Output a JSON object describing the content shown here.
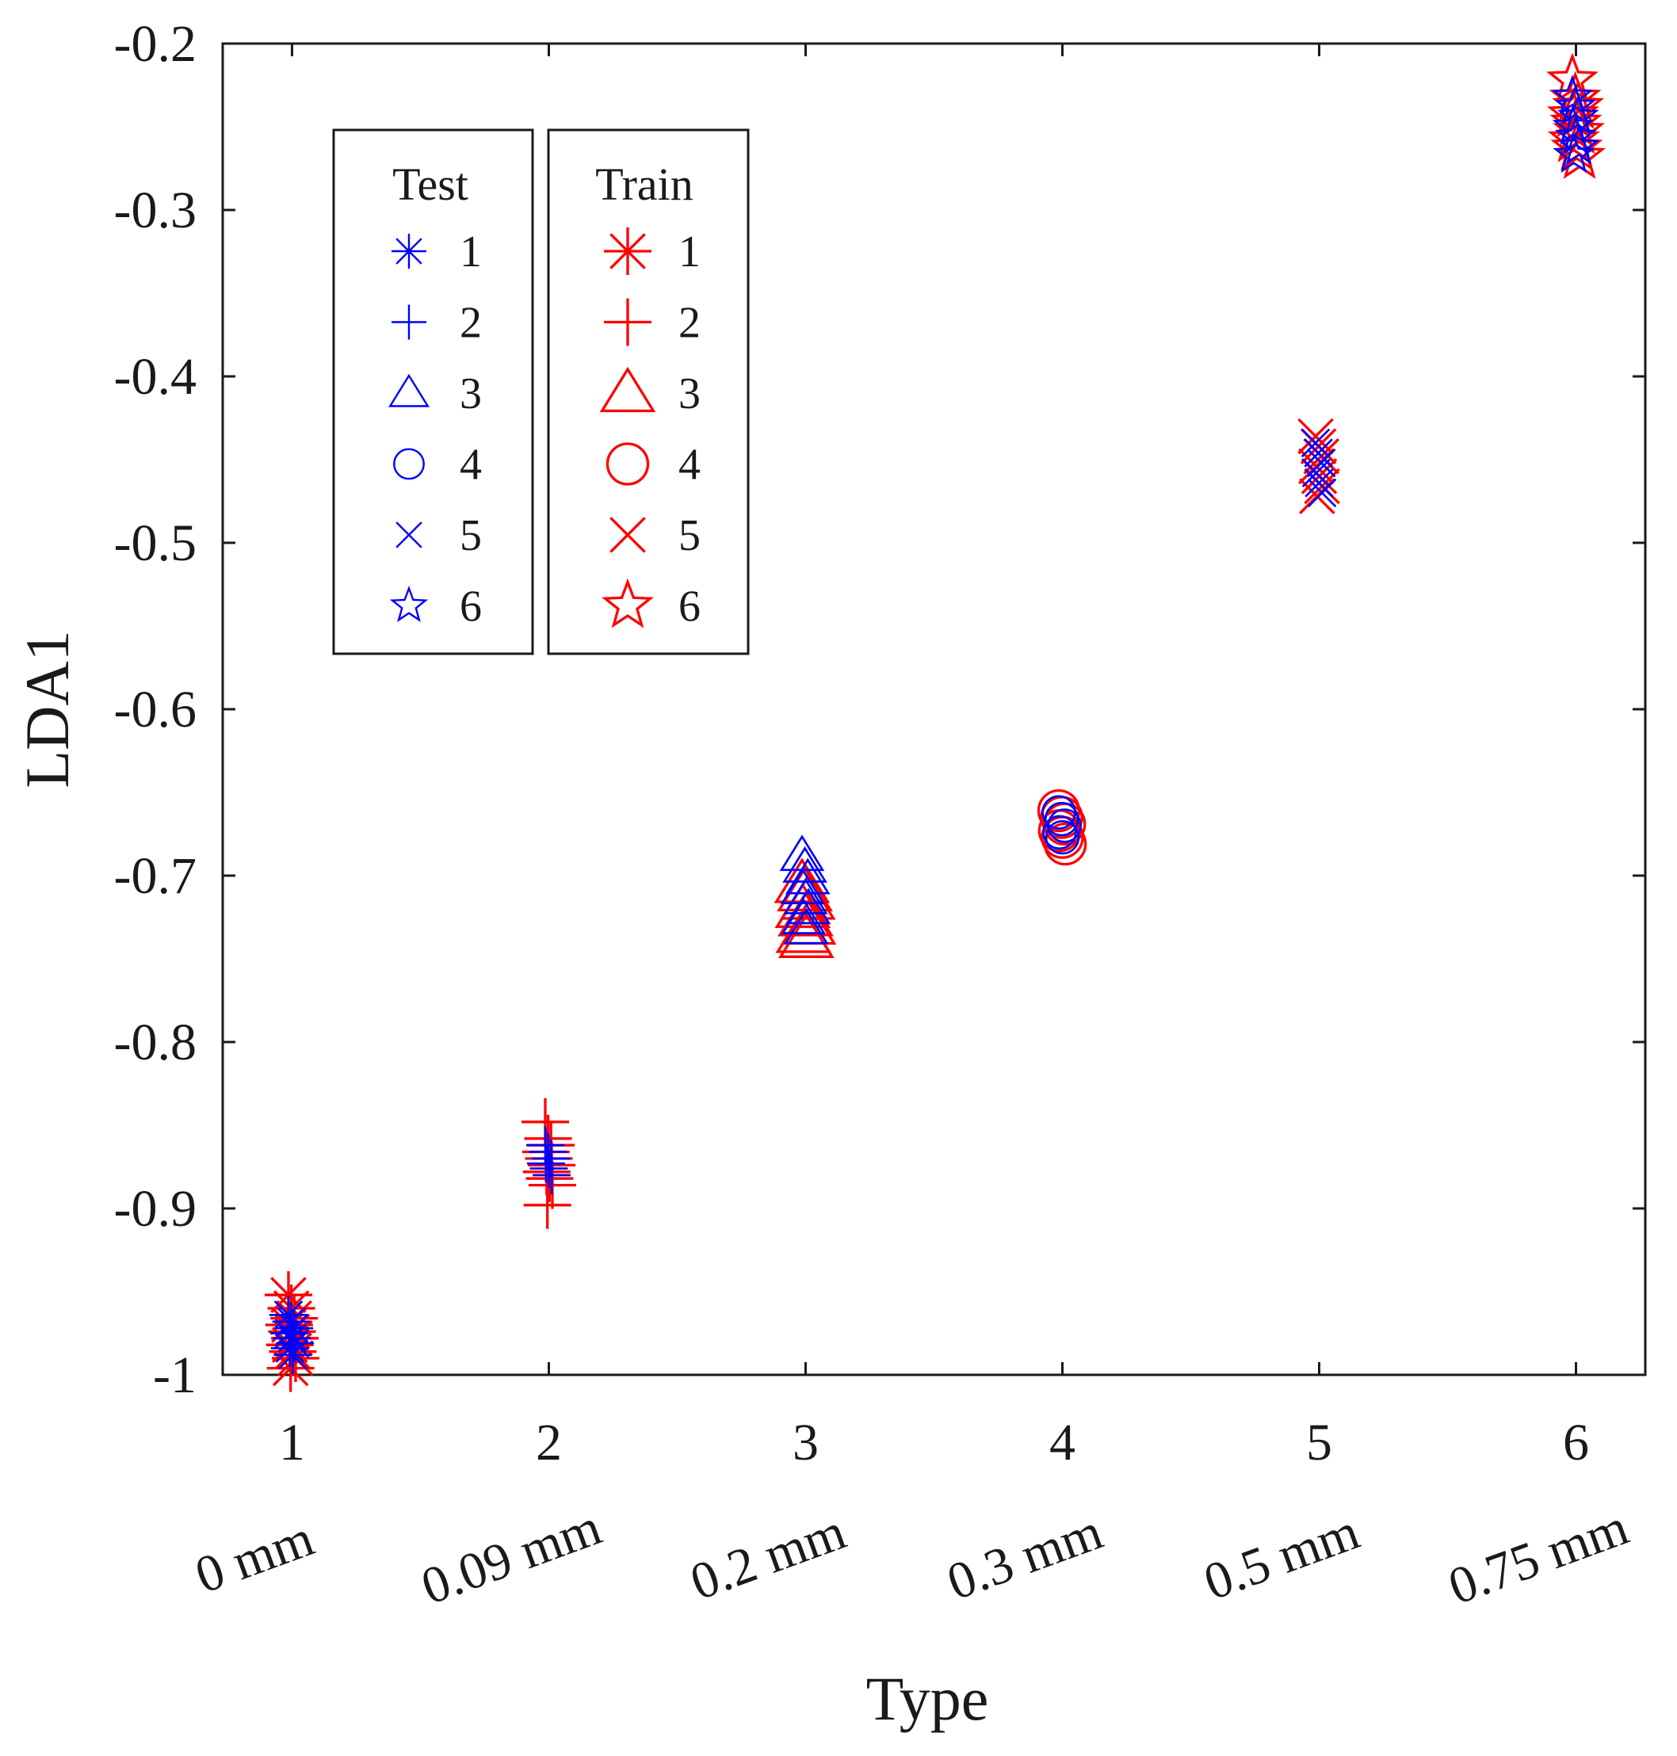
{
  "chart_data": {
    "type": "scatter",
    "title": "",
    "xlabel": "Type",
    "ylabel": "LDA1",
    "xlim": [
      0.73,
      6.27
    ],
    "ylim": [
      -1,
      -0.2
    ],
    "xticks": [
      1,
      2,
      3,
      4,
      5,
      6
    ],
    "xtick_labels": [
      "1",
      "2",
      "3",
      "4",
      "5",
      "6"
    ],
    "xtick_sublabels": [
      "0 mm",
      "0.09 mm",
      "0.2 mm",
      "0.3 mm",
      "0.5 mm",
      "0.75 mm"
    ],
    "yticks": [
      -1,
      -0.9,
      -0.8,
      -0.7,
      -0.6,
      -0.5,
      -0.4,
      -0.3,
      -0.2
    ],
    "ytick_labels": [
      "-1",
      "-0.9",
      "-0.8",
      "-0.7",
      "-0.6",
      "-0.5",
      "-0.4",
      "-0.3",
      "-0.2"
    ],
    "grid": false,
    "colors": {
      "test": "#0000ff",
      "train": "#ff0000",
      "axis": "#1a1a1a"
    },
    "legends": [
      {
        "title": "Test",
        "color": "#0000ff",
        "entries": [
          "1",
          "2",
          "3",
          "4",
          "5",
          "6"
        ],
        "markers": [
          "asterisk",
          "plus",
          "triangle",
          "circle",
          "x",
          "star"
        ]
      },
      {
        "title": "Train",
        "color": "#ff0000",
        "entries": [
          "1",
          "2",
          "3",
          "4",
          "5",
          "6"
        ],
        "markers": [
          "asterisk",
          "plus",
          "triangle",
          "circle",
          "x",
          "star"
        ]
      }
    ],
    "series": [
      {
        "name": "Train 1",
        "group": "Train",
        "x": 1,
        "marker": "asterisk",
        "color": "#ff0000",
        "values": [
          -0.952,
          -0.96,
          -0.966,
          -0.97,
          -0.974,
          -0.978,
          -0.982,
          -0.986,
          -0.99,
          -0.996
        ]
      },
      {
        "name": "Test 1",
        "group": "Test",
        "x": 1,
        "marker": "asterisk",
        "color": "#0000ff",
        "values": [
          -0.964,
          -0.968,
          -0.972,
          -0.975,
          -0.978,
          -0.981,
          -0.984,
          -0.988
        ]
      },
      {
        "name": "Train 2",
        "group": "Train",
        "x": 2,
        "marker": "plus",
        "color": "#ff0000",
        "values": [
          -0.848,
          -0.858,
          -0.862,
          -0.866,
          -0.87,
          -0.874,
          -0.878,
          -0.882,
          -0.886,
          -0.898
        ]
      },
      {
        "name": "Test 2",
        "group": "Test",
        "x": 2,
        "marker": "plus",
        "color": "#0000ff",
        "values": [
          -0.862,
          -0.866,
          -0.87,
          -0.873,
          -0.876,
          -0.88
        ]
      },
      {
        "name": "Train 3",
        "group": "Train",
        "x": 3,
        "marker": "triangle",
        "color": "#ff0000",
        "values": [
          -0.705,
          -0.71,
          -0.715,
          -0.72,
          -0.725,
          -0.73,
          -0.735,
          -0.738
        ]
      },
      {
        "name": "Test 3",
        "group": "Test",
        "x": 3,
        "marker": "triangle",
        "color": "#0000ff",
        "values": [
          -0.688,
          -0.695,
          -0.702,
          -0.708,
          -0.714,
          -0.72,
          -0.726,
          -0.732
        ]
      },
      {
        "name": "Train 4",
        "group": "Train",
        "x": 4,
        "marker": "circle",
        "color": "#ff0000",
        "values": [
          -0.661,
          -0.665,
          -0.669,
          -0.673,
          -0.677,
          -0.681
        ]
      },
      {
        "name": "Test 4",
        "group": "Test",
        "x": 4,
        "marker": "circle",
        "color": "#0000ff",
        "values": [
          -0.662,
          -0.666,
          -0.67,
          -0.674,
          -0.677
        ]
      },
      {
        "name": "Train 5",
        "group": "Train",
        "x": 5,
        "marker": "x",
        "color": "#ff0000",
        "values": [
          -0.436,
          -0.442,
          -0.448,
          -0.454,
          -0.46,
          -0.466,
          -0.472
        ]
      },
      {
        "name": "Test 5",
        "group": "Test",
        "x": 5,
        "marker": "x",
        "color": "#0000ff",
        "values": [
          -0.44,
          -0.446,
          -0.452,
          -0.458,
          -0.464,
          -0.47
        ]
      },
      {
        "name": "Train 6",
        "group": "Train",
        "x": 6,
        "marker": "star",
        "color": "#ff0000",
        "values": [
          -0.222,
          -0.233,
          -0.238,
          -0.243,
          -0.248,
          -0.253,
          -0.258,
          -0.263,
          -0.268
        ]
      },
      {
        "name": "Test 6",
        "group": "Test",
        "x": 6,
        "marker": "star",
        "color": "#0000ff",
        "values": [
          -0.232,
          -0.238,
          -0.244,
          -0.25,
          -0.256,
          -0.262,
          -0.267
        ]
      }
    ]
  }
}
